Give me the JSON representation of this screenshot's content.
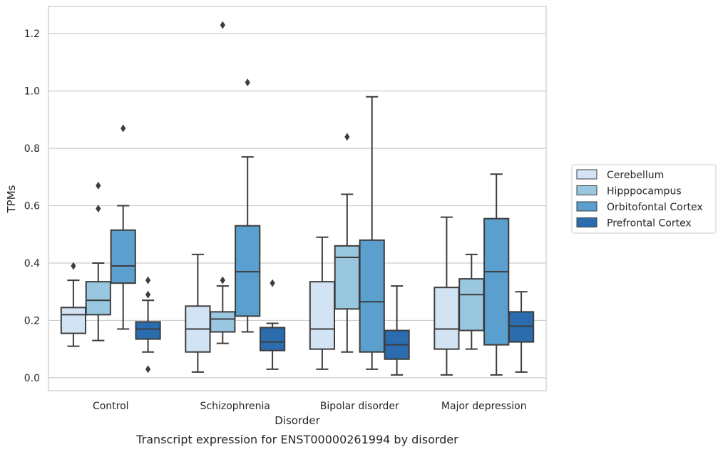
{
  "chart_data": {
    "type": "box",
    "caption": "Transcript expression for ENST00000261994 by disorder",
    "xlabel": "Disorder",
    "ylabel": "TPMs",
    "ylim": [
      -0.045,
      1.295
    ],
    "yticks": [
      "0.0",
      "0.2",
      "0.4",
      "0.6",
      "0.8",
      "1.0",
      "1.2"
    ],
    "grid": "horizontal",
    "legend_position": "right",
    "categories": [
      "Control",
      "Schizophrenia",
      "Bipolar disorder",
      "Major depression"
    ],
    "series": [
      {
        "name": "Cerebellum",
        "color": "#d2e3f3",
        "boxes": [
          {
            "min": 0.11,
            "q1": 0.155,
            "median": 0.22,
            "q3": 0.245,
            "max": 0.34,
            "outliers": [
              0.39
            ]
          },
          {
            "min": 0.02,
            "q1": 0.09,
            "median": 0.17,
            "q3": 0.25,
            "max": 0.43,
            "outliers": []
          },
          {
            "min": 0.03,
            "q1": 0.1,
            "median": 0.17,
            "q3": 0.335,
            "max": 0.49,
            "outliers": []
          },
          {
            "min": 0.01,
            "q1": 0.1,
            "median": 0.17,
            "q3": 0.315,
            "max": 0.56,
            "outliers": []
          }
        ]
      },
      {
        "name": "Hipppocampus",
        "color": "#9ac7e0",
        "boxes": [
          {
            "min": 0.13,
            "q1": 0.22,
            "median": 0.27,
            "q3": 0.335,
            "max": 0.4,
            "outliers": [
              0.59,
              0.67
            ]
          },
          {
            "min": 0.12,
            "q1": 0.16,
            "median": 0.205,
            "q3": 0.23,
            "max": 0.32,
            "outliers": [
              0.34,
              1.23
            ]
          },
          {
            "min": 0.09,
            "q1": 0.24,
            "median": 0.42,
            "q3": 0.46,
            "max": 0.64,
            "outliers": [
              0.84
            ]
          },
          {
            "min": 0.1,
            "q1": 0.165,
            "median": 0.29,
            "q3": 0.345,
            "max": 0.43,
            "outliers": []
          }
        ]
      },
      {
        "name": "Orbitofontal Cortex",
        "color": "#5a9fcd",
        "boxes": [
          {
            "min": 0.17,
            "q1": 0.33,
            "median": 0.39,
            "q3": 0.515,
            "max": 0.6,
            "outliers": [
              0.87
            ]
          },
          {
            "min": 0.16,
            "q1": 0.215,
            "median": 0.37,
            "q3": 0.53,
            "max": 0.77,
            "outliers": [
              1.03
            ]
          },
          {
            "min": 0.03,
            "q1": 0.09,
            "median": 0.265,
            "q3": 0.48,
            "max": 0.98,
            "outliers": []
          },
          {
            "min": 0.01,
            "q1": 0.115,
            "median": 0.37,
            "q3": 0.555,
            "max": 0.71,
            "outliers": []
          }
        ]
      },
      {
        "name": "Prefrontal Cortex",
        "color": "#2a6cad",
        "boxes": [
          {
            "min": 0.09,
            "q1": 0.135,
            "median": 0.17,
            "q3": 0.195,
            "max": 0.27,
            "outliers": [
              0.03,
              0.29,
              0.34
            ]
          },
          {
            "min": 0.03,
            "q1": 0.095,
            "median": 0.125,
            "q3": 0.175,
            "max": 0.19,
            "outliers": [
              0.33
            ]
          },
          {
            "min": 0.01,
            "q1": 0.065,
            "median": 0.115,
            "q3": 0.165,
            "max": 0.32,
            "outliers": []
          },
          {
            "min": 0.02,
            "q1": 0.125,
            "median": 0.18,
            "q3": 0.23,
            "max": 0.3,
            "outliers": []
          }
        ]
      }
    ]
  }
}
